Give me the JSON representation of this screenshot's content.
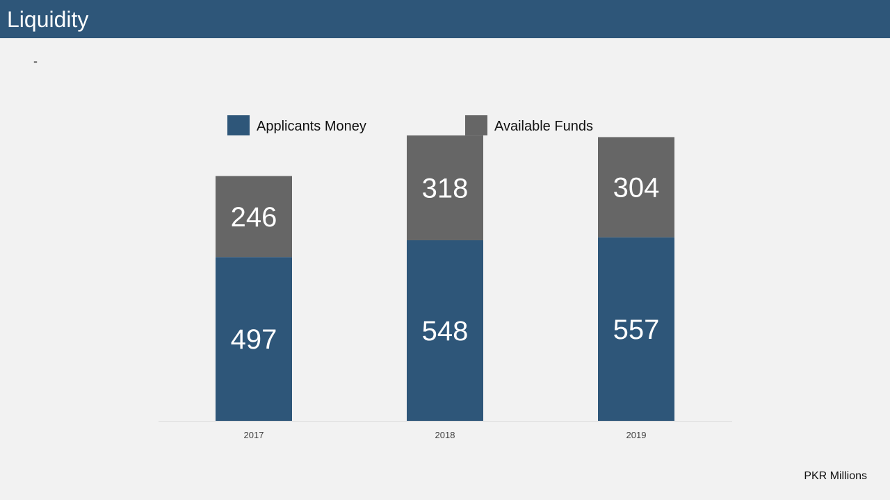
{
  "header": {
    "title": "Liquidity"
  },
  "body": {
    "bullet": "-"
  },
  "footer": {
    "unit_note": "PKR Millions"
  },
  "colors": {
    "header_bg": "#2e5679",
    "background": "#f2f2f2",
    "applicants_money": "#2e5679",
    "available_funds": "#666666"
  },
  "chart_data": {
    "type": "bar",
    "stacked": true,
    "categories": [
      "2017",
      "2018",
      "2019"
    ],
    "series": [
      {
        "name": "Applicants Money",
        "values": [
          497,
          548,
          557
        ],
        "color": "#2e5679"
      },
      {
        "name": "Available Funds",
        "values": [
          246,
          318,
          304
        ],
        "color": "#666666"
      }
    ],
    "title": "",
    "xlabel": "",
    "ylabel": "",
    "ylim": [
      0,
      870
    ],
    "grid": false,
    "legend": "top",
    "data_labels": true
  }
}
